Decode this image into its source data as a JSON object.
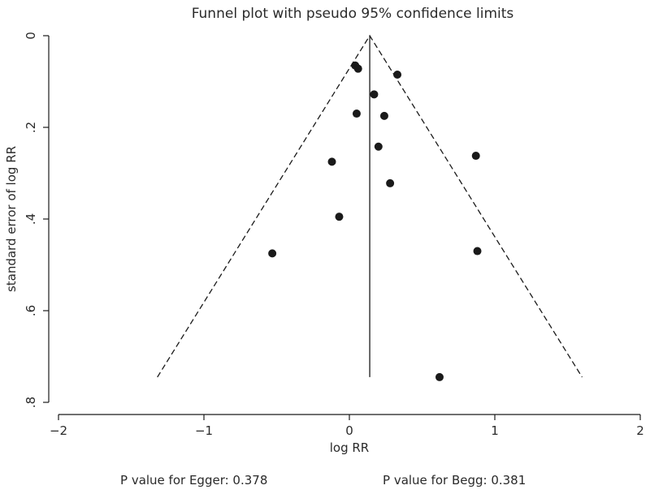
{
  "chart_data": {
    "type": "scatter",
    "title": "Funnel plot with pseudo 95% confidence limits",
    "xlabel": "log RR",
    "ylabel": "standard error of log RR",
    "xlim": [
      -2,
      2
    ],
    "ylim": [
      0,
      0.8
    ],
    "y_reversed": true,
    "x_ticks": [
      {
        "value": -2,
        "label": "−2"
      },
      {
        "value": -1,
        "label": "−1"
      },
      {
        "value": 0,
        "label": "0"
      },
      {
        "value": 1,
        "label": "1"
      },
      {
        "value": 2,
        "label": "2"
      }
    ],
    "y_ticks": [
      {
        "value": 0,
        "label": "0"
      },
      {
        "value": 0.2,
        "label": ".2"
      },
      {
        "value": 0.4,
        "label": ".4"
      },
      {
        "value": 0.6,
        "label": ".6"
      },
      {
        "value": 0.8,
        "label": ".8"
      }
    ],
    "pooled_estimate": 0.14,
    "funnel_max_se": 0.745,
    "points": [
      {
        "x": 0.04,
        "y": 0.065
      },
      {
        "x": 0.06,
        "y": 0.072
      },
      {
        "x": 0.33,
        "y": 0.085
      },
      {
        "x": 0.17,
        "y": 0.128
      },
      {
        "x": 0.05,
        "y": 0.17
      },
      {
        "x": 0.24,
        "y": 0.175
      },
      {
        "x": 0.2,
        "y": 0.242
      },
      {
        "x": 0.87,
        "y": 0.262
      },
      {
        "x": -0.12,
        "y": 0.275
      },
      {
        "x": 0.28,
        "y": 0.322
      },
      {
        "x": -0.07,
        "y": 0.395
      },
      {
        "x": -0.53,
        "y": 0.475
      },
      {
        "x": 0.88,
        "y": 0.47
      },
      {
        "x": 0.62,
        "y": 0.745
      }
    ],
    "grid": false,
    "legend": "none"
  },
  "footer": {
    "egger_text": "P value for Egger: 0.378",
    "begg_text": "P value for Begg: 0.381"
  }
}
